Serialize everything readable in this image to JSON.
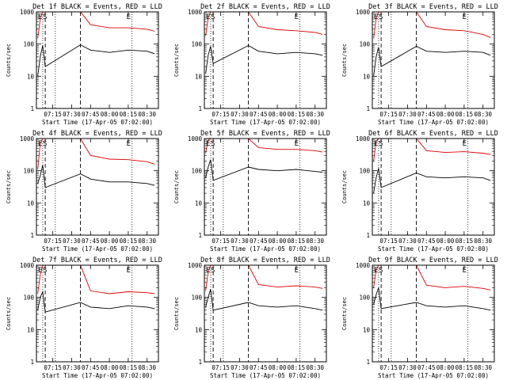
{
  "panel_labels": {
    "ylabel": "Counts/sec",
    "xlabel": "Start Time (17-Apr-05 07:02:00)",
    "marker_E": "E",
    "marker_S": "S"
  },
  "colors": {
    "events": "#000000",
    "lld": "#dd0000"
  },
  "chart_data": [
    {
      "type": "line",
      "title": "Det 1f BLACK = Events, RED = LLD",
      "ylabel": "Counts/sec",
      "xlabel": "Start Time (17-Apr-05 07:02:00)",
      "yscale": "log",
      "ylim": [
        1,
        1000
      ],
      "ytick_labels": [
        "1",
        "10",
        "100",
        "1000"
      ],
      "xlim_minutes": [
        0,
        97
      ],
      "xtick_labels": [
        "07:15",
        "07:30",
        "07:45",
        "08:00",
        "08:15",
        "08:30"
      ],
      "vlines_dashed": [
        "07:09",
        "07:37"
      ],
      "vlines_dotted": [
        "07:07",
        "07:17",
        "08:18"
      ],
      "series": [
        {
          "name": "Events",
          "color": "black",
          "x": [
            "07:03",
            "07:05",
            "07:07",
            "07:09",
            "07:37",
            "07:45",
            "08:00",
            "08:15",
            "08:30",
            "08:36"
          ],
          "y": [
            10,
            40,
            90,
            20,
            95,
            65,
            55,
            65,
            60,
            50
          ]
        },
        {
          "name": "LLD",
          "color": "red",
          "x": [
            "07:03",
            "07:05",
            "07:07",
            "07:09",
            "07:37",
            "07:45",
            "08:00",
            "08:15",
            "08:30",
            "08:36"
          ],
          "y": [
            150,
            600,
            1000,
            1000,
            1000,
            400,
            320,
            320,
            290,
            250
          ]
        }
      ]
    },
    {
      "type": "line",
      "title": "Det 2f BLACK = Events, RED = LLD",
      "ylabel": "Counts/sec",
      "xlabel": "Start Time (17-Apr-05 07:02:00)",
      "yscale": "log",
      "ylim": [
        1,
        1000
      ],
      "ytick_labels": [
        "1",
        "10",
        "100",
        "1000"
      ],
      "xlim_minutes": [
        0,
        97
      ],
      "xtick_labels": [
        "07:15",
        "07:30",
        "07:45",
        "08:00",
        "08:15",
        "08:30"
      ],
      "vlines_dashed": [
        "07:09",
        "07:37"
      ],
      "vlines_dotted": [
        "07:07",
        "07:17",
        "08:18"
      ],
      "series": [
        {
          "name": "Events",
          "color": "black",
          "x": [
            "07:03",
            "07:05",
            "07:07",
            "07:09",
            "07:37",
            "07:45",
            "08:00",
            "08:15",
            "08:30",
            "08:36"
          ],
          "y": [
            12,
            45,
            85,
            25,
            90,
            60,
            50,
            55,
            50,
            45
          ]
        },
        {
          "name": "LLD",
          "color": "red",
          "x": [
            "07:03",
            "07:05",
            "07:07",
            "07:09",
            "07:37",
            "07:45",
            "08:00",
            "08:15",
            "08:30",
            "08:36"
          ],
          "y": [
            180,
            650,
            1000,
            1000,
            1000,
            350,
            280,
            260,
            230,
            200
          ]
        }
      ]
    },
    {
      "type": "line",
      "title": "Det 3f BLACK = Events, RED = LLD",
      "ylabel": "Counts/sec",
      "xlabel": "Start Time (17-Apr-05 07:02:00)",
      "yscale": "log",
      "ylim": [
        1,
        1000
      ],
      "ytick_labels": [
        "1",
        "10",
        "100",
        "1000"
      ],
      "xlim_minutes": [
        0,
        97
      ],
      "xtick_labels": [
        "07:15",
        "07:30",
        "07:45",
        "08:00",
        "08:15",
        "08:30"
      ],
      "vlines_dashed": [
        "07:09",
        "07:37"
      ],
      "vlines_dotted": [
        "07:07",
        "07:17",
        "08:18"
      ],
      "series": [
        {
          "name": "Events",
          "color": "black",
          "x": [
            "07:03",
            "07:05",
            "07:07",
            "07:09",
            "07:37",
            "07:45",
            "08:00",
            "08:15",
            "08:30",
            "08:36"
          ],
          "y": [
            10,
            40,
            80,
            20,
            85,
            60,
            55,
            60,
            55,
            45
          ]
        },
        {
          "name": "LLD",
          "color": "red",
          "x": [
            "07:03",
            "07:05",
            "07:07",
            "07:09",
            "07:37",
            "07:45",
            "08:00",
            "08:15",
            "08:30",
            "08:36"
          ],
          "y": [
            150,
            600,
            1000,
            1000,
            1000,
            350,
            280,
            260,
            200,
            160
          ]
        }
      ]
    },
    {
      "type": "line",
      "title": "Det 4f BLACK = Events, RED = LLD",
      "ylabel": "Counts/sec",
      "xlabel": "Start Time (17-Apr-05 07:02:00)",
      "yscale": "log",
      "ylim": [
        1,
        1000
      ],
      "ytick_labels": [
        "1",
        "10",
        "100",
        "1000"
      ],
      "xlim_minutes": [
        0,
        97
      ],
      "xtick_labels": [
        "07:15",
        "07:30",
        "07:45",
        "08:00",
        "08:15",
        "08:30"
      ],
      "vlines_dashed": [
        "07:09",
        "07:37"
      ],
      "vlines_dotted": [
        "07:07",
        "07:17",
        "08:18"
      ],
      "series": [
        {
          "name": "Events",
          "color": "black",
          "x": [
            "07:03",
            "07:05",
            "07:07",
            "07:09",
            "07:37",
            "07:45",
            "08:00",
            "08:15",
            "08:30",
            "08:36"
          ],
          "y": [
            40,
            70,
            150,
            30,
            80,
            55,
            45,
            45,
            40,
            35
          ]
        },
        {
          "name": "LLD",
          "color": "red",
          "x": [
            "07:03",
            "07:05",
            "07:07",
            "07:09",
            "07:37",
            "07:45",
            "08:00",
            "08:15",
            "08:30",
            "08:36"
          ],
          "y": [
            110,
            700,
            1000,
            1000,
            1000,
            300,
            230,
            220,
            190,
            160
          ]
        }
      ]
    },
    {
      "type": "line",
      "title": "Det 5f BLACK = Events, RED = LLD",
      "ylabel": "Counts/sec",
      "xlabel": "Start Time (17-Apr-05 07:02:00)",
      "yscale": "log",
      "ylim": [
        1,
        1000
      ],
      "ytick_labels": [
        "1",
        "10",
        "100",
        "1000"
      ],
      "xlim_minutes": [
        0,
        97
      ],
      "xtick_labels": [
        "07:15",
        "07:30",
        "07:45",
        "08:00",
        "08:15",
        "08:30"
      ],
      "vlines_dashed": [
        "07:09",
        "07:37"
      ],
      "vlines_dotted": [
        "07:07",
        "07:17",
        "08:18"
      ],
      "series": [
        {
          "name": "Events",
          "color": "black",
          "x": [
            "07:03",
            "07:05",
            "07:07",
            "07:09",
            "07:37",
            "07:45",
            "08:00",
            "08:15",
            "08:30",
            "08:36"
          ],
          "y": [
            60,
            130,
            220,
            50,
            130,
            110,
            100,
            110,
            95,
            90
          ]
        },
        {
          "name": "LLD",
          "color": "red",
          "x": [
            "07:03",
            "07:05",
            "07:07",
            "07:09",
            "07:37",
            "07:45",
            "08:00",
            "08:15",
            "08:30",
            "08:36"
          ],
          "y": [
            350,
            900,
            1000,
            1000,
            1000,
            520,
            460,
            460,
            420,
            380
          ]
        }
      ]
    },
    {
      "type": "line",
      "title": "Det 6f BLACK = Events, RED = LLD",
      "ylabel": "Counts/sec",
      "xlabel": "Start Time (17-Apr-05 07:02:00)",
      "yscale": "log",
      "ylim": [
        1,
        1000
      ],
      "ytick_labels": [
        "1",
        "10",
        "100",
        "1000"
      ],
      "xlim_minutes": [
        0,
        97
      ],
      "xtick_labels": [
        "07:15",
        "07:30",
        "07:45",
        "08:00",
        "08:15",
        "08:30"
      ],
      "vlines_dashed": [
        "07:09",
        "07:37"
      ],
      "vlines_dotted": [
        "07:07",
        "07:17",
        "08:18"
      ],
      "series": [
        {
          "name": "Events",
          "color": "black",
          "x": [
            "07:03",
            "07:05",
            "07:07",
            "07:09",
            "07:37",
            "07:45",
            "08:00",
            "08:15",
            "08:30",
            "08:36"
          ],
          "y": [
            20,
            60,
            120,
            30,
            85,
            65,
            60,
            65,
            60,
            50
          ]
        },
        {
          "name": "LLD",
          "color": "red",
          "x": [
            "07:03",
            "07:05",
            "07:07",
            "07:09",
            "07:37",
            "07:45",
            "08:00",
            "08:15",
            "08:30",
            "08:36"
          ],
          "y": [
            200,
            800,
            1000,
            1000,
            1000,
            420,
            370,
            390,
            350,
            320
          ]
        }
      ]
    },
    {
      "type": "line",
      "title": "Det 7f BLACK = Events, RED = LLD",
      "ylabel": "Counts/sec",
      "xlabel": "Start Time (17-Apr-05 07:02:00)",
      "yscale": "log",
      "ylim": [
        1,
        1000
      ],
      "ytick_labels": [
        "1",
        "10",
        "100",
        "1000"
      ],
      "xlim_minutes": [
        0,
        97
      ],
      "xtick_labels": [
        "07:15",
        "07:30",
        "07:45",
        "08:00",
        "08:15",
        "08:30"
      ],
      "vlines_dashed": [
        "07:09",
        "07:37"
      ],
      "vlines_dotted": [
        "07:07",
        "07:17",
        "08:18"
      ],
      "series": [
        {
          "name": "Events",
          "color": "black",
          "x": [
            "07:03",
            "07:05",
            "07:07",
            "07:09",
            "07:37",
            "07:45",
            "08:00",
            "08:15",
            "08:30",
            "08:36"
          ],
          "y": [
            40,
            100,
            150,
            35,
            70,
            50,
            45,
            55,
            50,
            45
          ]
        },
        {
          "name": "LLD",
          "color": "red",
          "x": [
            "07:03",
            "07:05",
            "07:07",
            "07:09",
            "07:37",
            "07:45",
            "08:00",
            "08:15",
            "08:30",
            "08:36"
          ],
          "y": [
            130,
            500,
            1000,
            1000,
            1000,
            160,
            130,
            150,
            140,
            130
          ]
        }
      ]
    },
    {
      "type": "line",
      "title": "Det 8f BLACK = Events, RED = LLD",
      "ylabel": "Counts/sec",
      "xlabel": "Start Time (17-Apr-05 07:02:00)",
      "yscale": "log",
      "ylim": [
        1,
        1000
      ],
      "ytick_labels": [
        "1",
        "10",
        "100",
        "1000"
      ],
      "xlim_minutes": [
        0,
        97
      ],
      "xtick_labels": [
        "07:15",
        "07:30",
        "07:45",
        "08:00",
        "08:15",
        "08:30"
      ],
      "vlines_dashed": [
        "07:09",
        "07:37"
      ],
      "vlines_dotted": [
        "07:07",
        "07:17",
        "08:18"
      ],
      "series": [
        {
          "name": "Events",
          "color": "black",
          "x": [
            "07:03",
            "07:05",
            "07:07",
            "07:09",
            "07:37",
            "07:45",
            "08:00",
            "08:15",
            "08:30",
            "08:36"
          ],
          "y": [
            50,
            100,
            180,
            40,
            70,
            55,
            50,
            55,
            45,
            40
          ]
        },
        {
          "name": "LLD",
          "color": "red",
          "x": [
            "07:03",
            "07:05",
            "07:07",
            "07:09",
            "07:37",
            "07:45",
            "08:00",
            "08:15",
            "08:30",
            "08:36"
          ],
          "y": [
            160,
            600,
            1000,
            1000,
            1000,
            250,
            210,
            230,
            210,
            190
          ]
        }
      ]
    },
    {
      "type": "line",
      "title": "Det 9f BLACK = Events, RED = LLD",
      "ylabel": "Counts/sec",
      "xlabel": "Start Time (17-Apr-05 07:02:00)",
      "yscale": "log",
      "ylim": [
        1,
        1000
      ],
      "ytick_labels": [
        "1",
        "10",
        "100",
        "1000"
      ],
      "xlim_minutes": [
        0,
        97
      ],
      "xtick_labels": [
        "07:15",
        "07:30",
        "07:45",
        "08:00",
        "08:15",
        "08:30"
      ],
      "vlines_dashed": [
        "07:09",
        "07:37"
      ],
      "vlines_dotted": [
        "07:07",
        "07:17",
        "08:18"
      ],
      "series": [
        {
          "name": "Events",
          "color": "black",
          "x": [
            "07:03",
            "07:05",
            "07:07",
            "07:09",
            "07:37",
            "07:45",
            "08:00",
            "08:15",
            "08:30",
            "08:36"
          ],
          "y": [
            60,
            120,
            200,
            45,
            70,
            55,
            50,
            55,
            45,
            40
          ]
        },
        {
          "name": "LLD",
          "color": "red",
          "x": [
            "07:03",
            "07:05",
            "07:07",
            "07:09",
            "07:37",
            "07:45",
            "08:00",
            "08:15",
            "08:30",
            "08:36"
          ],
          "y": [
            200,
            700,
            1000,
            1000,
            1000,
            240,
            200,
            220,
            190,
            170
          ]
        }
      ]
    }
  ]
}
